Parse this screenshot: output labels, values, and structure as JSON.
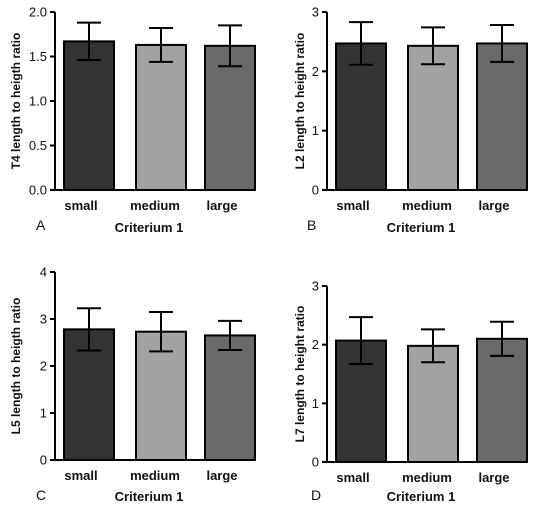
{
  "chart_data": [
    {
      "panel_label": "A",
      "type": "bar",
      "categories": [
        "small",
        "medium",
        "large"
      ],
      "values": [
        1.67,
        1.63,
        1.62
      ],
      "errors": [
        0.21,
        0.19,
        0.23
      ],
      "xlabel": "Criterium 1",
      "ylabel": "T4 length to heigth ratio",
      "ylim": [
        0,
        2.0
      ],
      "yticks": [
        "0.0",
        "0.5",
        "1.0",
        "1.5",
        "2.0"
      ],
      "bar_colors": [
        "#333333",
        "#a2a2a2",
        "#6a6a6a"
      ]
    },
    {
      "panel_label": "B",
      "type": "bar",
      "categories": [
        "small",
        "medium",
        "large"
      ],
      "values": [
        2.47,
        2.43,
        2.47
      ],
      "errors": [
        0.36,
        0.31,
        0.31
      ],
      "xlabel": "Criterium 1",
      "ylabel": "L2 length to height ratio",
      "ylim": [
        0,
        3
      ],
      "yticks": [
        "0",
        "1",
        "2",
        "3"
      ],
      "bar_colors": [
        "#333333",
        "#a2a2a2",
        "#6a6a6a"
      ]
    },
    {
      "panel_label": "C",
      "type": "bar",
      "categories": [
        "small",
        "medium",
        "large"
      ],
      "values": [
        2.78,
        2.73,
        2.65
      ],
      "errors": [
        0.45,
        0.42,
        0.31
      ],
      "xlabel": "Criterium 1",
      "ylabel": "L5 length to heigth ratio",
      "ylim": [
        0,
        4
      ],
      "yticks": [
        "0",
        "1",
        "2",
        "3",
        "4"
      ],
      "bar_colors": [
        "#333333",
        "#a2a2a2",
        "#6a6a6a"
      ]
    },
    {
      "panel_label": "D",
      "type": "bar",
      "categories": [
        "small",
        "medium",
        "large"
      ],
      "values": [
        2.07,
        1.98,
        2.1
      ],
      "errors": [
        0.4,
        0.28,
        0.29
      ],
      "xlabel": "Criterium 1",
      "ylabel": "L7 length to height ratio",
      "ylim": [
        0,
        3
      ],
      "yticks": [
        "0",
        "1",
        "2",
        "3"
      ],
      "bar_colors": [
        "#333333",
        "#a2a2a2",
        "#6a6a6a"
      ]
    }
  ]
}
